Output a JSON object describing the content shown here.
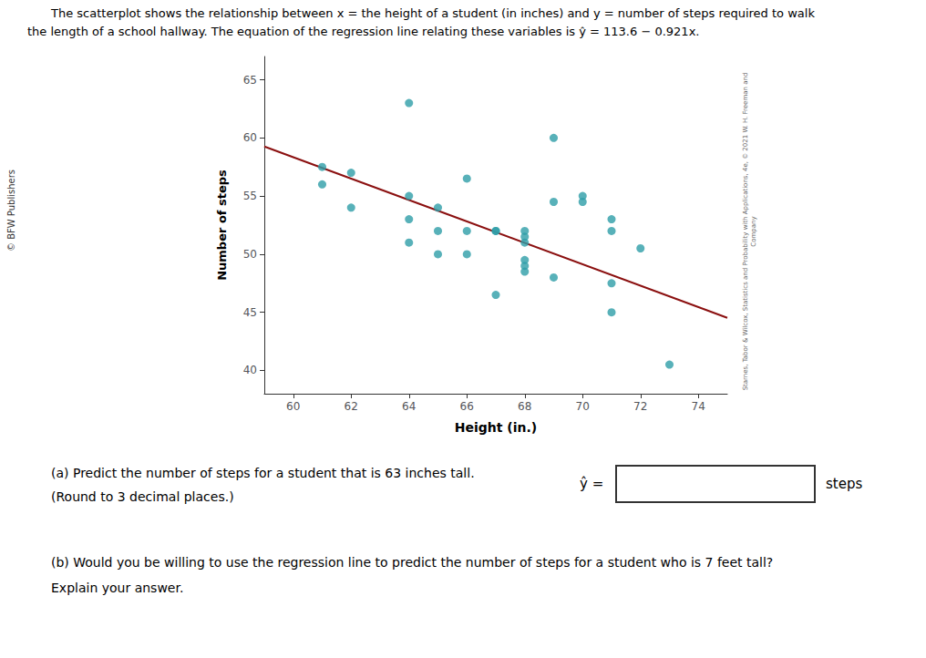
{
  "chart_data": {
    "type": "scatter",
    "annotations": [
      "The scatterplot shows the relationship between x = the height of a student (in inches) and y = number of steps required to walk",
      "the length of a school hallway. The equation of the regression line relating these variables is ŷ = 113.6 − 0.921x.",
      "© BFW Publishers",
      "Starnes, Tabor & Wilcox, Statistics and Probability with Applications, 4e, © 2021 W. H. Freeman and\nCompany",
      "(a) Predict the number of steps for a student that is 63 inches tall.",
      "(Round to 3 decimal places.)",
      "ŷ =",
      "steps",
      "(b) Would you be willing to use the regression line to predict the number of steps for a student who is 7 feet tall?",
      "Explain your answer."
    ],
    "xlabel": "Height (in.)",
    "ylabel": "Number of steps",
    "series": [
      {
        "type": "scatter",
        "color": "#2E9EA8",
        "x": [
          61,
          61,
          62,
          62,
          64,
          64,
          64,
          64,
          65,
          65,
          65,
          66,
          66,
          66,
          67,
          67,
          67,
          68,
          68,
          68,
          68,
          68,
          68,
          69,
          69,
          69,
          70,
          70,
          71,
          71,
          71,
          71,
          72,
          73
        ],
        "values": [
          57.5,
          56,
          54,
          57,
          63,
          55,
          53,
          51,
          54,
          52,
          50,
          56.5,
          52,
          50,
          52,
          52,
          46.5,
          51.5,
          52,
          51,
          49.5,
          49,
          48.5,
          60,
          54.5,
          48,
          55,
          54.5,
          53,
          52,
          47.5,
          45,
          50.5,
          40.5
        ]
      },
      {
        "type": "line",
        "color": "#8B1010",
        "x": [
          59,
          75
        ],
        "values": [
          59.261,
          44.525
        ]
      }
    ],
    "xlim": [
      59,
      75
    ],
    "ylim": [
      38,
      67
    ],
    "xticks": [
      60,
      62,
      64,
      66,
      68,
      70,
      72,
      74
    ],
    "yticks": [
      40,
      45,
      50,
      55,
      60,
      65
    ],
    "grid": false
  }
}
